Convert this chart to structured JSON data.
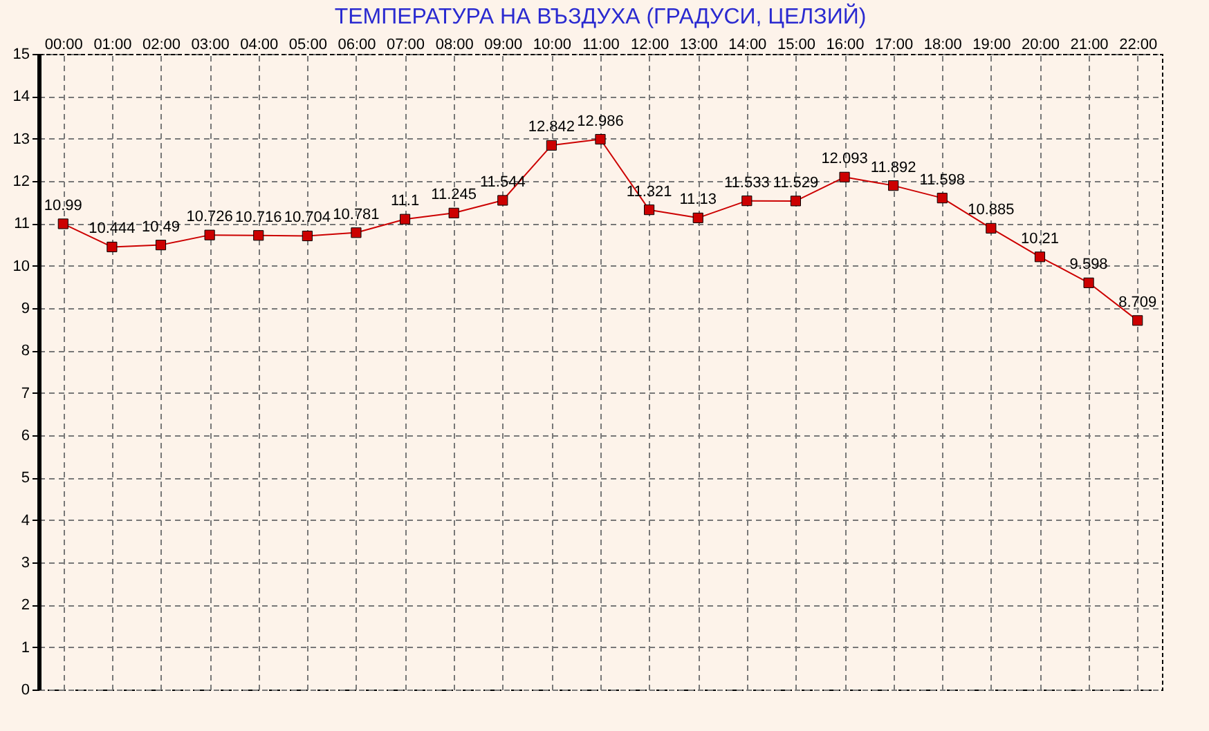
{
  "chart_data": {
    "type": "line",
    "title": "ТЕМПЕРАТУРА НА ВЪЗДУХА  (ГРАДУСИ, ЦЕЛЗИЙ)",
    "categories": [
      "00:00",
      "01:00",
      "02:00",
      "03:00",
      "04:00",
      "05:00",
      "06:00",
      "07:00",
      "08:00",
      "09:00",
      "10:00",
      "11:00",
      "12:00",
      "13:00",
      "14:00",
      "15:00",
      "16:00",
      "17:00",
      "18:00",
      "19:00",
      "20:00",
      "21:00",
      "22:00"
    ],
    "series": [
      {
        "color": "#cc0000",
        "values": [
          10.99,
          10.444,
          10.49,
          10.726,
          10.716,
          10.704,
          10.781,
          11.1,
          11.245,
          11.544,
          12.842,
          12.986,
          11.321,
          11.13,
          11.533,
          11.529,
          12.093,
          11.892,
          11.598,
          10.885,
          10.21,
          9.598,
          8.709
        ]
      }
    ],
    "ylim": [
      0,
      15
    ],
    "yticks": [
      0,
      1,
      2,
      3,
      4,
      5,
      6,
      7,
      8,
      9,
      10,
      11,
      12,
      13,
      14,
      15
    ],
    "grid": true,
    "marker": "square",
    "data_labels": true
  }
}
